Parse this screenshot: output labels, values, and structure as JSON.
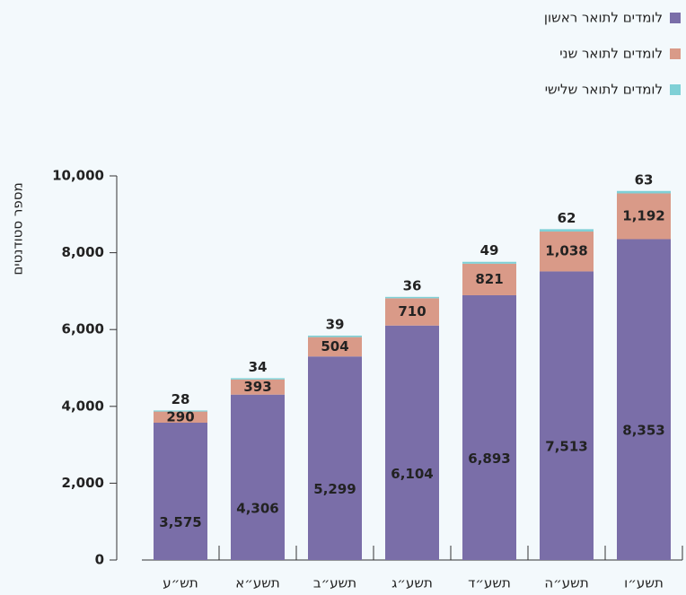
{
  "chart_data": {
    "type": "stacked-bar",
    "y_label": "מספר סטודנטים",
    "categories": [
      "תש״ע",
      "תשע״א",
      "תשע״ב",
      "תשע״ג",
      "תשע״ד",
      "תשע״ה",
      "תשע״ו"
    ],
    "series": [
      {
        "name": "לומדים לתואר ראשון",
        "color": "#7a6ea8",
        "values": [
          3575,
          4306,
          5299,
          6104,
          6893,
          7513,
          8353
        ],
        "value_labels": [
          "3,575",
          "4,306",
          "5,299",
          "6,104",
          "6,893",
          "7,513",
          "8,353"
        ]
      },
      {
        "name": "לומדים לתואר שני",
        "color": "#d99a88",
        "values": [
          290,
          393,
          504,
          710,
          821,
          1038,
          1192
        ],
        "value_labels": [
          "290",
          "393",
          "504",
          "710",
          "821",
          "1,038",
          "1,192"
        ]
      },
      {
        "name": "לומדים לתואר שלישי",
        "color": "#7fd0d6",
        "values": [
          28,
          34,
          39,
          36,
          49,
          62,
          63
        ]
      }
    ],
    "ylim": [
      0,
      10000
    ],
    "yticks": [
      0,
      {
        "value": 2000,
        "label": "2,000"
      },
      {
        "value": 4000,
        "label": "4,000"
      },
      {
        "value": 6000,
        "label": "6,000"
      },
      {
        "value": 8000,
        "label": "8,000"
      },
      {
        "value": 10000,
        "label": "10,000"
      }
    ],
    "legend": "top-right"
  }
}
